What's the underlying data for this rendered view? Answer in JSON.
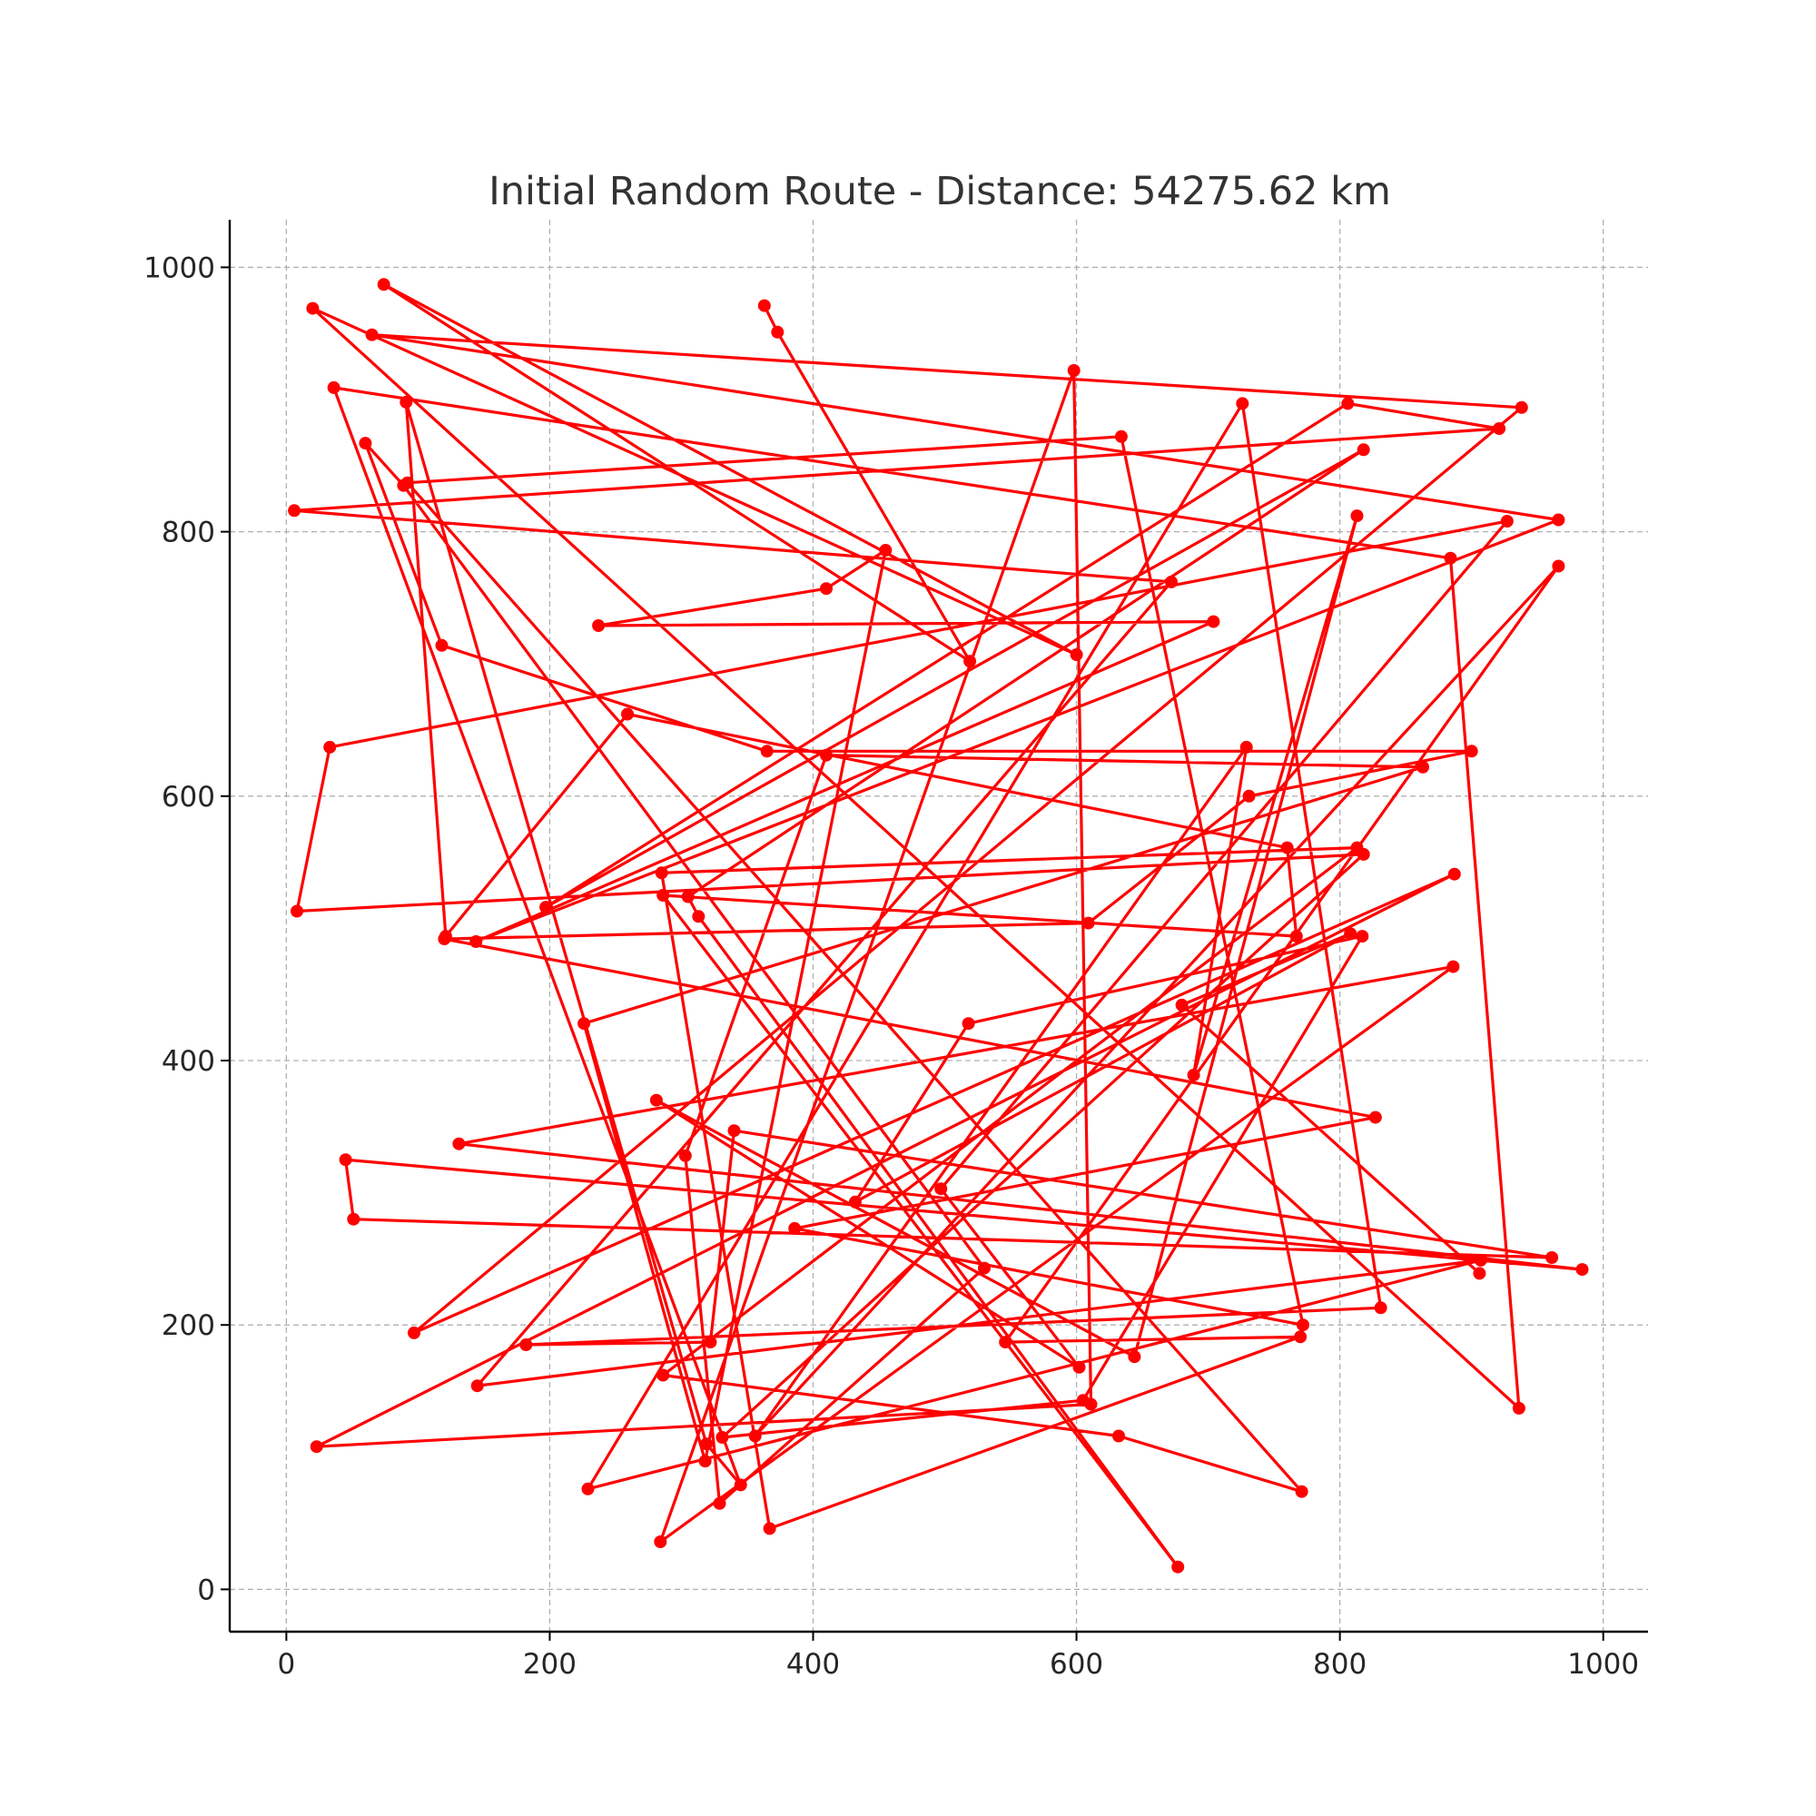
{
  "chart_data": {
    "type": "line",
    "title": "Initial Random Route - Distance: 54275.62 km",
    "xlabel": "",
    "ylabel": "",
    "xlim": [
      -43,
      1034
    ],
    "ylim": [
      -32,
      1036
    ],
    "x_ticks": [
      0,
      200,
      400,
      600,
      800,
      1000
    ],
    "y_ticks": [
      0,
      200,
      400,
      600,
      800,
      1000
    ],
    "grid": true,
    "marker": "circle",
    "color": "#ff0000",
    "series": [
      {
        "x": [
          363,
          373,
          519,
          74,
          600,
          20,
          936,
          884,
          36,
          345,
          319,
          91,
          121,
          259,
          760,
          767,
          286,
          677,
          313,
          305,
          818,
          197,
          806,
          921,
          6,
          672,
          145,
          907,
          229,
          726,
          831,
          182,
          322,
          340,
          961,
          51,
          45,
          984,
          131,
          886,
          284,
          598,
          611,
          23,
          887,
          97,
          938,
          65,
          966,
          144,
          704,
          237,
          410,
          455,
          318,
          226,
          863,
          410,
          303,
          329,
          530,
          89,
          60,
          118,
          365,
          900,
          731,
          609,
          120,
          827,
          386,
          772,
          634,
          92,
          771,
          632,
          286,
          813,
          285,
          367,
          770,
          546,
          966,
          356,
          729,
          689,
          813,
          644,
          281,
          602,
          497,
          927,
          33,
          8,
          818,
          331,
          605,
          817,
          518,
          432,
          808,
          680,
          906
        ],
        "y": [
          971,
          951,
          702,
          987,
          707,
          969,
          137,
          780,
          909,
          79,
          110,
          898,
          494,
          662,
          561,
          494,
          525,
          17,
          509,
          524,
          862,
          516,
          897,
          878,
          816,
          762,
          154,
          249,
          76,
          897,
          213,
          185,
          187,
          347,
          251,
          280,
          325,
          242,
          337,
          471,
          36,
          922,
          140,
          108,
          541,
          194,
          894,
          949,
          809,
          490,
          732,
          729,
          757,
          786,
          97,
          428,
          622,
          631,
          328,
          65,
          243,
          835,
          867,
          714,
          634,
          634,
          600,
          504,
          492,
          357,
          273,
          200,
          872,
          837,
          74,
          116,
          162,
          561,
          542,
          46,
          191,
          187,
          774,
          116,
          637,
          389,
          812,
          176,
          370,
          168,
          303,
          808,
          637,
          513,
          556,
          115,
          143,
          494,
          428,
          293,
          496,
          442,
          239
        ]
      }
    ]
  }
}
